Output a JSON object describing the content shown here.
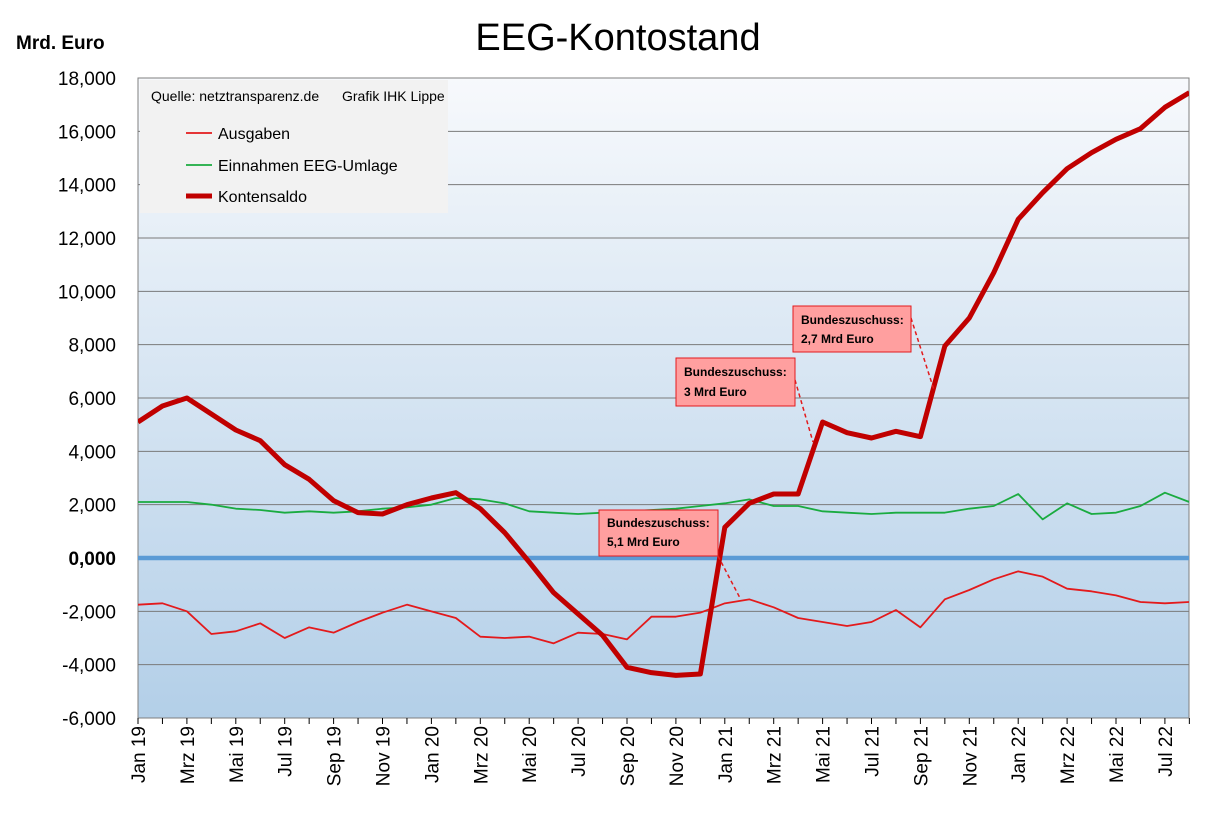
{
  "chart_data": {
    "type": "line",
    "title": "EEG-Kontostand",
    "ylabel": "Mrd. Euro",
    "ylim": [
      -6000,
      18000
    ],
    "yticks": [
      {
        "value": 18000,
        "label": "18,000"
      },
      {
        "value": 16000,
        "label": "16,000"
      },
      {
        "value": 14000,
        "label": "14,000"
      },
      {
        "value": 12000,
        "label": "12,000"
      },
      {
        "value": 10000,
        "label": "10,000"
      },
      {
        "value": 8000,
        "label": "8,000"
      },
      {
        "value": 6000,
        "label": "6,000"
      },
      {
        "value": 4000,
        "label": "4,000"
      },
      {
        "value": 2000,
        "label": "2,000"
      },
      {
        "value": 0,
        "label": "0,000"
      },
      {
        "value": -2000,
        "label": "-2,000"
      },
      {
        "value": -4000,
        "label": "-4,000"
      },
      {
        "value": -6000,
        "label": "-6,000"
      }
    ],
    "grid": true,
    "legend_position": "top-left",
    "source_note": "Quelle: netztransparenz.de",
    "credit_note": "Grafik IHK Lippe",
    "categories": [
      "Jan 19",
      "Feb 19",
      "Mrz 19",
      "Apr 19",
      "Mai 19",
      "Jun 19",
      "Jul 19",
      "Aug 19",
      "Sep 19",
      "Okt 19",
      "Nov 19",
      "Dez 19",
      "Jan 20",
      "Feb 20",
      "Mrz 20",
      "Apr 20",
      "Mai 20",
      "Jun 20",
      "Jul 20",
      "Aug 20",
      "Sep 20",
      "Okt 20",
      "Nov 20",
      "Dez 20",
      "Jan 21",
      "Feb 21",
      "Mrz 21",
      "Apr 21",
      "Mai 21",
      "Jun 21",
      "Jul 21",
      "Aug 21",
      "Sep 21",
      "Okt 21",
      "Nov 21",
      "Dez 21",
      "Jan 22",
      "Feb 22",
      "Mrz 22",
      "Apr 22",
      "Mai 22",
      "Jun 22",
      "Jul 22",
      "Aug 22"
    ],
    "tick_labels": [
      "Jan 19",
      "Mrz 19",
      "Mai 19",
      "Jul 19",
      "Sep 19",
      "Nov 19",
      "Jan 20",
      "Mrz 20",
      "Mai 20",
      "Jul 20",
      "Sep 20",
      "Nov 20",
      "Jan 21",
      "Mrz 21",
      "Mai 21",
      "Jul 21",
      "Sep 21",
      "Nov 21",
      "Jan 22",
      "Mrz 22",
      "Mai 22",
      "Jul 22"
    ],
    "series": [
      {
        "name": "Ausgaben",
        "color": "#e31a1c",
        "width": 1.8,
        "values": [
          -1750,
          -1700,
          -2000,
          -2850,
          -2750,
          -2450,
          -3000,
          -2600,
          -2800,
          -2400,
          -2050,
          -1750,
          -2000,
          -2250,
          -2950,
          -3000,
          -2950,
          -3200,
          -2800,
          -2850,
          -3050,
          -2200,
          -2200,
          -2050,
          -1700,
          -1550,
          -1850,
          -2250,
          -2400,
          -2550,
          -2400,
          -1950,
          -2600,
          -1550,
          -1200,
          -800,
          -500,
          -700,
          -1150,
          -1250,
          -1400,
          -1650,
          -1700,
          -1650
        ]
      },
      {
        "name": "Einnahmen EEG-Umlage",
        "color": "#1aab40",
        "width": 1.8,
        "values": [
          2100,
          2100,
          2100,
          2000,
          1850,
          1800,
          1700,
          1750,
          1700,
          1750,
          1850,
          1900,
          2000,
          2250,
          2200,
          2050,
          1750,
          1700,
          1650,
          1700,
          1750,
          1800,
          1850,
          1950,
          2050,
          2200,
          1950,
          1950,
          1750,
          1700,
          1650,
          1700,
          1700,
          1700,
          1850,
          1950,
          2400,
          1450,
          2050,
          1650,
          1700,
          1950,
          2450,
          2100
        ]
      },
      {
        "name": "Kontensaldo",
        "color": "#c00000",
        "width": 5,
        "values": [
          5100,
          5700,
          6000,
          5400,
          4800,
          4400,
          3500,
          2950,
          2150,
          1700,
          1650,
          2000,
          2250,
          2450,
          1850,
          950,
          -150,
          -1300,
          -2100,
          -2900,
          -4100,
          -4300,
          -4400,
          -4350,
          1150,
          2050,
          2400,
          2400,
          5100,
          4700,
          4500,
          4750,
          4550,
          7950,
          9000,
          10700,
          12700,
          13700,
          14600,
          15200,
          15700,
          16100,
          16900,
          17450
        ]
      }
    ],
    "annotations": [
      {
        "lines": [
          "Bundeszuschuss:",
          "5,1 Mrd Euro"
        ],
        "index": 24
      },
      {
        "lines": [
          "Bundeszuschuss:",
          "3 Mrd Euro"
        ],
        "index": 28
      },
      {
        "lines": [
          "Bundeszuschuss:",
          "2,7 Mrd Euro"
        ],
        "index": 33
      }
    ],
    "colors": {
      "zero_line": "#5b9bd5",
      "annotation_fill": "#ff9f9f",
      "annotation_border": "#e31a1c",
      "plot_top": "#f7f9fc",
      "plot_bottom": "#b3cfe8",
      "legend_bg": "#f2f2f2"
    }
  }
}
